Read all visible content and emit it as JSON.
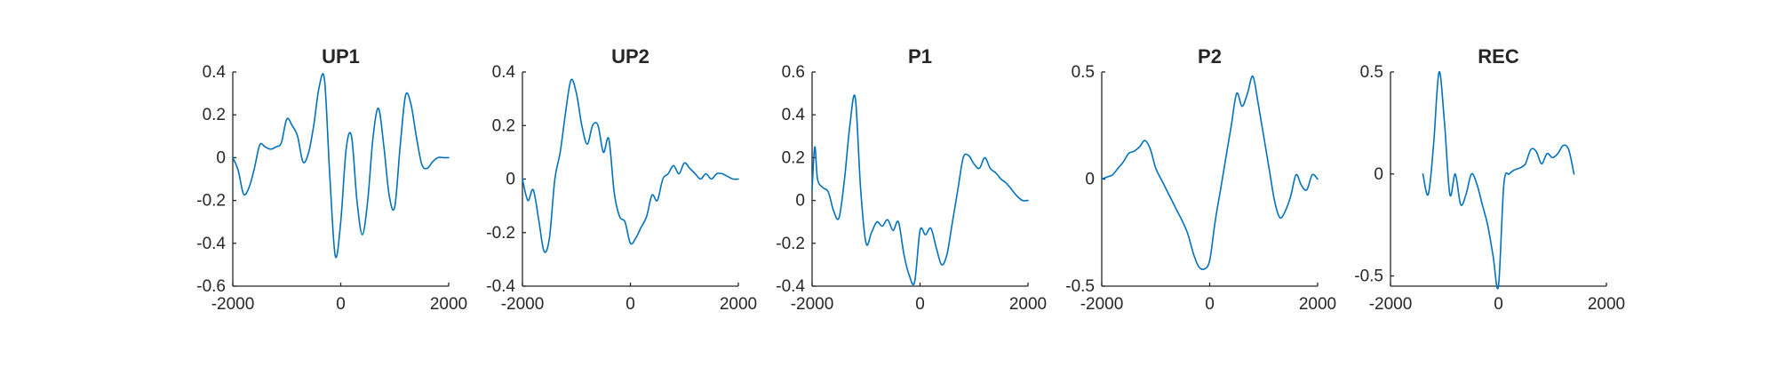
{
  "chart_data": [
    {
      "type": "line",
      "title": "UP1",
      "xlim": [
        -2000,
        2000
      ],
      "ylim": [
        -0.6,
        0.4
      ],
      "xticks": [
        -2000,
        0,
        2000
      ],
      "xtick_labels": [
        "-2000",
        "0",
        "2000"
      ],
      "yticks": [
        -0.6,
        -0.4,
        -0.2,
        0,
        0.2,
        0.4
      ],
      "ytick_labels": [
        "-0.6",
        "-0.4",
        "-0.2",
        "0",
        "0.2",
        "0.4"
      ],
      "color": "#0072bd",
      "x": [
        -2000,
        -1900,
        -1800,
        -1700,
        -1600,
        -1500,
        -1400,
        -1300,
        -1200,
        -1100,
        -1000,
        -900,
        -800,
        -700,
        -600,
        -500,
        -400,
        -300,
        -200,
        -100,
        0,
        100,
        200,
        300,
        400,
        500,
        600,
        700,
        800,
        900,
        1000,
        1100,
        1200,
        1300,
        1400,
        1500,
        1600,
        1700,
        1800,
        1900,
        2000
      ],
      "y": [
        0.0,
        -0.06,
        -0.17,
        -0.14,
        -0.05,
        0.06,
        0.05,
        0.04,
        0.05,
        0.07,
        0.18,
        0.15,
        0.1,
        -0.02,
        0.02,
        0.15,
        0.33,
        0.36,
        -0.1,
        -0.46,
        -0.3,
        0.04,
        0.1,
        -0.2,
        -0.36,
        -0.2,
        0.1,
        0.23,
        0.05,
        -0.18,
        -0.23,
        0.05,
        0.29,
        0.25,
        0.1,
        -0.03,
        -0.05,
        -0.02,
        0.0,
        0.0,
        0.0
      ]
    },
    {
      "type": "line",
      "title": "UP2",
      "xlim": [
        -2000,
        2000
      ],
      "ylim": [
        -0.4,
        0.4
      ],
      "xticks": [
        -2000,
        0,
        2000
      ],
      "xtick_labels": [
        "-2000",
        "0",
        "2000"
      ],
      "yticks": [
        -0.4,
        -0.2,
        0,
        0.2,
        0.4
      ],
      "ytick_labels": [
        "-0.4",
        "-0.2",
        "0",
        "0.2",
        "0.4"
      ],
      "color": "#0072bd",
      "x": [
        -2000,
        -1900,
        -1800,
        -1700,
        -1600,
        -1500,
        -1400,
        -1300,
        -1200,
        -1100,
        -1000,
        -900,
        -800,
        -700,
        -600,
        -500,
        -400,
        -300,
        -200,
        -100,
        0,
        100,
        200,
        300,
        400,
        500,
        600,
        700,
        800,
        900,
        1000,
        1100,
        1200,
        1300,
        1400,
        1500,
        1600,
        1700,
        1800,
        1900,
        2000
      ],
      "y": [
        0.0,
        -0.08,
        -0.04,
        -0.15,
        -0.27,
        -0.22,
        0.0,
        0.1,
        0.25,
        0.37,
        0.32,
        0.2,
        0.13,
        0.2,
        0.2,
        0.1,
        0.15,
        -0.05,
        -0.14,
        -0.16,
        -0.24,
        -0.22,
        -0.18,
        -0.14,
        -0.06,
        -0.08,
        0.0,
        0.02,
        0.05,
        0.02,
        0.06,
        0.04,
        0.02,
        0.0,
        0.02,
        0.0,
        0.02,
        0.02,
        0.01,
        0.0,
        0.0
      ]
    },
    {
      "type": "line",
      "title": "P1",
      "xlim": [
        -2000,
        2000
      ],
      "ylim": [
        -0.4,
        0.6
      ],
      "xticks": [
        -2000,
        0,
        2000
      ],
      "xtick_labels": [
        "-2000",
        "0",
        "2000"
      ],
      "yticks": [
        -0.4,
        -0.2,
        0,
        0.2,
        0.4,
        0.6
      ],
      "ytick_labels": [
        "-0.4",
        "-0.2",
        "0",
        "0.2",
        "0.4",
        "0.6"
      ],
      "color": "#0072bd",
      "x": [
        -2000,
        -1950,
        -1900,
        -1800,
        -1700,
        -1600,
        -1500,
        -1400,
        -1300,
        -1200,
        -1100,
        -1000,
        -900,
        -800,
        -700,
        -600,
        -500,
        -400,
        -300,
        -200,
        -100,
        0,
        100,
        200,
        300,
        400,
        500,
        600,
        700,
        800,
        900,
        1000,
        1100,
        1200,
        1300,
        1400,
        1500,
        1600,
        1700,
        1800,
        1900,
        2000
      ],
      "y": [
        0.05,
        0.25,
        0.1,
        0.06,
        0.04,
        -0.05,
        -0.08,
        0.1,
        0.35,
        0.48,
        0.05,
        -0.2,
        -0.15,
        -0.1,
        -0.12,
        -0.09,
        -0.14,
        -0.1,
        -0.25,
        -0.35,
        -0.38,
        -0.14,
        -0.16,
        -0.13,
        -0.22,
        -0.3,
        -0.25,
        -0.1,
        0.05,
        0.2,
        0.21,
        0.17,
        0.15,
        0.2,
        0.15,
        0.13,
        0.1,
        0.08,
        0.05,
        0.02,
        0.0,
        0.0
      ]
    },
    {
      "type": "line",
      "title": "P2",
      "xlim": [
        -2000,
        2000
      ],
      "ylim": [
        -0.5,
        0.5
      ],
      "xticks": [
        -2000,
        0,
        2000
      ],
      "xtick_labels": [
        "-2000",
        "0",
        "2000"
      ],
      "yticks": [
        -0.5,
        0,
        0.5
      ],
      "ytick_labels": [
        "-0.5",
        "0",
        "0.5"
      ],
      "color": "#0072bd",
      "x": [
        -2000,
        -1900,
        -1800,
        -1700,
        -1600,
        -1500,
        -1400,
        -1300,
        -1200,
        -1100,
        -1000,
        -900,
        -800,
        -700,
        -600,
        -500,
        -400,
        -300,
        -200,
        -100,
        0,
        100,
        200,
        300,
        400,
        500,
        600,
        700,
        800,
        900,
        1000,
        1100,
        1200,
        1300,
        1400,
        1500,
        1600,
        1700,
        1800,
        1900,
        2000
      ],
      "y": [
        0.0,
        0.01,
        0.02,
        0.05,
        0.08,
        0.12,
        0.13,
        0.15,
        0.18,
        0.14,
        0.05,
        0.0,
        -0.05,
        -0.1,
        -0.15,
        -0.2,
        -0.26,
        -0.35,
        -0.41,
        -0.42,
        -0.38,
        -0.2,
        -0.05,
        0.1,
        0.25,
        0.4,
        0.34,
        0.4,
        0.48,
        0.35,
        0.2,
        0.05,
        -0.1,
        -0.18,
        -0.15,
        -0.08,
        0.02,
        -0.03,
        -0.05,
        0.02,
        0.0
      ]
    },
    {
      "type": "line",
      "title": "REC",
      "xlim": [
        -2000,
        2000
      ],
      "ylim": [
        -0.55,
        0.5
      ],
      "xticks": [
        -2000,
        0,
        2000
      ],
      "xtick_labels": [
        "-2000",
        "0",
        "2000"
      ],
      "yticks": [
        -0.5,
        0,
        0.5
      ],
      "ytick_labels": [
        "-0.5",
        "0",
        "0.5"
      ],
      "color": "#0072bd",
      "x": [
        -1400,
        -1300,
        -1200,
        -1100,
        -1000,
        -900,
        -800,
        -700,
        -600,
        -500,
        -400,
        -300,
        -200,
        -100,
        0,
        100,
        200,
        300,
        400,
        500,
        600,
        700,
        800,
        900,
        1000,
        1100,
        1200,
        1300,
        1400
      ],
      "y": [
        0.0,
        -0.1,
        0.15,
        0.5,
        0.25,
        -0.1,
        0.0,
        -0.15,
        -0.1,
        0.0,
        -0.05,
        -0.15,
        -0.25,
        -0.4,
        -0.55,
        -0.05,
        0.0,
        0.02,
        0.03,
        0.05,
        0.12,
        0.11,
        0.05,
        0.1,
        0.08,
        0.1,
        0.14,
        0.12,
        0.0
      ]
    }
  ]
}
